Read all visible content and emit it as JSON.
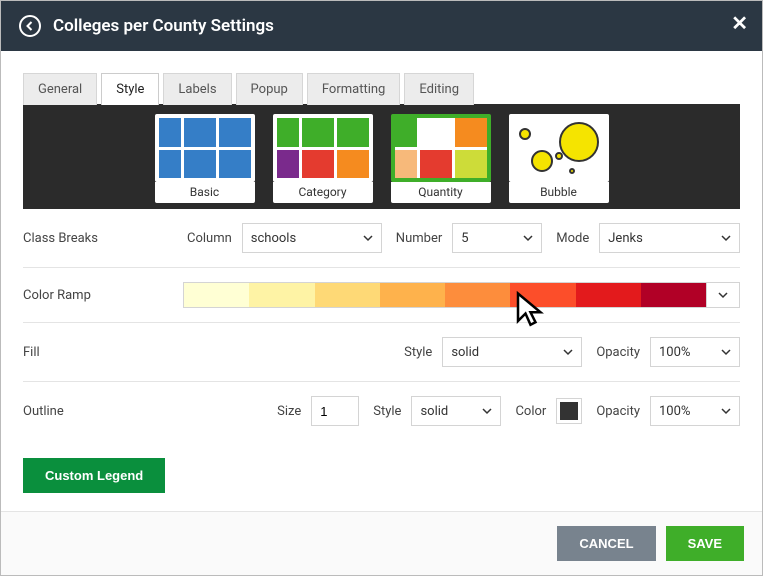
{
  "header": {
    "title": "Colleges per County Settings"
  },
  "tabs": [
    "General",
    "Style",
    "Labels",
    "Popup",
    "Formatting",
    "Editing"
  ],
  "active_tab": "Style",
  "style_types": [
    {
      "key": "basic",
      "label": "Basic"
    },
    {
      "key": "category",
      "label": "Category"
    },
    {
      "key": "quantity",
      "label": "Quantity"
    },
    {
      "key": "bubble",
      "label": "Bubble"
    }
  ],
  "selected_style": "quantity",
  "swatches": {
    "basic": {
      "left_bar": "#357ec7",
      "top_right": "#357ec7",
      "main": [
        "#357ec7",
        "#357ec7",
        "#357ec7",
        "#357ec7"
      ]
    },
    "category": {
      "left_bar": "#3fae29",
      "top_right": "#3fae29",
      "main": [
        "#7a2a8c",
        "#e43b2f",
        "#f58b1f",
        "#f58b1f"
      ]
    },
    "quantity": {
      "left_bar": "#3fae29",
      "top_right": "#f58b1f",
      "main": [
        "#f7b97a",
        "#e43b2f",
        "#f58b1f",
        "#cddc39"
      ]
    },
    "bubble_colors": {
      "fill": "#f5e400",
      "stroke": "#333333"
    }
  },
  "class_breaks": {
    "section_label": "Class Breaks",
    "column_label": "Column",
    "column_value": "schools",
    "number_label": "Number",
    "number_value": "5",
    "mode_label": "Mode",
    "mode_value": "Jenks"
  },
  "color_ramp": {
    "section_label": "Color Ramp",
    "colors": [
      "#ffffd4",
      "#fef3a5",
      "#fed976",
      "#feb24c",
      "#fd8d3c",
      "#fc4e2a",
      "#e31a1c",
      "#b10026"
    ]
  },
  "fill": {
    "section_label": "Fill",
    "style_label": "Style",
    "style_value": "solid",
    "opacity_label": "Opacity",
    "opacity_value": "100%"
  },
  "outline": {
    "section_label": "Outline",
    "size_label": "Size",
    "size_value": "1",
    "style_label": "Style",
    "style_value": "solid",
    "color_label": "Color",
    "color_value": "#333333",
    "opacity_label": "Opacity",
    "opacity_value": "100%"
  },
  "buttons": {
    "custom_legend": "Custom Legend",
    "cancel": "CANCEL",
    "save": "SAVE"
  }
}
